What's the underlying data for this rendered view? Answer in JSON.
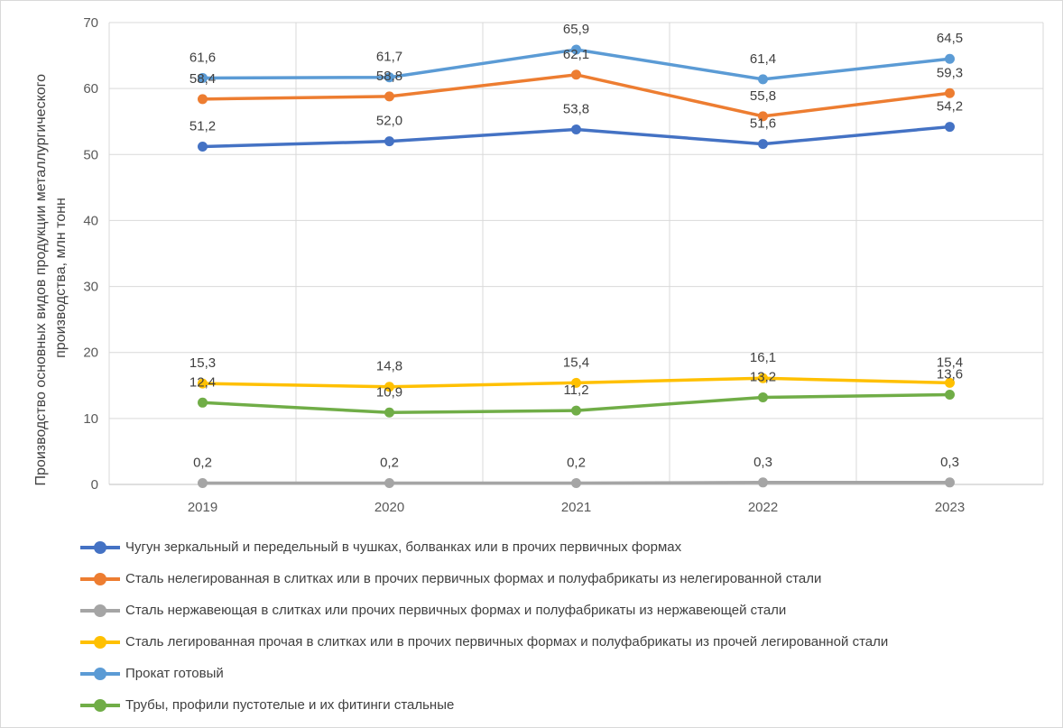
{
  "chart_data": {
    "type": "line",
    "title": "",
    "xlabel": "",
    "ylabel": "Производство основных видов продукции металлургического производства, млн тонн",
    "ylabel_lines": [
      "Производство основных видов продукции металлургического",
      "производства, млн тонн"
    ],
    "categories": [
      "2019",
      "2020",
      "2021",
      "2022",
      "2023"
    ],
    "ylim": [
      0,
      70
    ],
    "yticks": [
      0,
      10,
      20,
      30,
      40,
      50,
      60,
      70
    ],
    "grid": true,
    "legend_position": "bottom",
    "series": [
      {
        "name": "Чугун зеркальный и передельный в чушках, болванках или в прочих первичных формах",
        "color": "#4472c4",
        "values": [
          51.2,
          52.0,
          53.8,
          51.6,
          54.2
        ],
        "labels": [
          "51,2",
          "52,0",
          "53,8",
          "51,6",
          "54,2"
        ]
      },
      {
        "name": "Сталь нелегированная в слитках или в прочих первичных формах и полуфабрикаты из нелегированной стали",
        "color": "#ed7d31",
        "values": [
          58.4,
          58.8,
          62.1,
          55.8,
          59.3
        ],
        "labels": [
          "58,4",
          "58,8",
          "62,1",
          "55,8",
          "59,3"
        ]
      },
      {
        "name": "Сталь нержавеющая в слитках или прочих первичных формах и полуфабрикаты из нержавеющей стали",
        "color": "#a5a5a5",
        "values": [
          0.2,
          0.2,
          0.2,
          0.3,
          0.3
        ],
        "labels": [
          "0,2",
          "0,2",
          "0,2",
          "0,3",
          "0,3"
        ]
      },
      {
        "name": "Сталь легированная прочая в слитках или в прочих первичных формах и полуфабрикаты из прочей легированной стали",
        "color": "#ffc000",
        "values": [
          15.3,
          14.8,
          15.4,
          16.1,
          15.4
        ],
        "labels": [
          "15,3",
          "14,8",
          "15,4",
          "16,1",
          "15,4"
        ]
      },
      {
        "name": "Прокат готовый",
        "color": "#5b9bd5",
        "values": [
          61.6,
          61.7,
          65.9,
          61.4,
          64.5
        ],
        "labels": [
          "61,6",
          "61,7",
          "65,9",
          "61,4",
          "64,5"
        ]
      },
      {
        "name": "Трубы, профили пустотелые и их фитинги стальные",
        "color": "#70ad47",
        "values": [
          12.4,
          10.9,
          11.2,
          13.2,
          13.6
        ],
        "labels": [
          "12,4",
          "10,9",
          "11,2",
          "13,2",
          "13,6"
        ]
      }
    ]
  }
}
